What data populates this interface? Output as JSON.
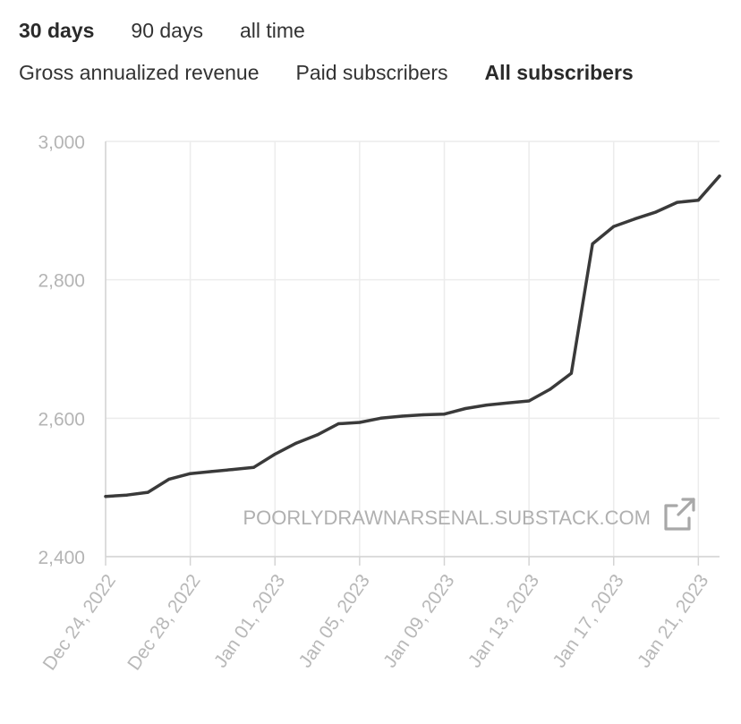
{
  "range_tabs": [
    {
      "label": "30 days",
      "active": true
    },
    {
      "label": "90 days",
      "active": false
    },
    {
      "label": "all time",
      "active": false
    }
  ],
  "metric_tabs": [
    {
      "label": "Gross annualized revenue",
      "active": false
    },
    {
      "label": "Paid subscribers",
      "active": false
    },
    {
      "label": "All subscribers",
      "active": true
    }
  ],
  "watermark": {
    "text": "POORLYDRAWNARSENAL.SUBSTACK.COM",
    "icon": "external-link-icon"
  },
  "colors": {
    "line": "#3a3a3a",
    "grid": "#ececec",
    "tick_text": "#b4b4b4"
  },
  "chart_data": {
    "type": "line",
    "title": "",
    "xlabel": "",
    "ylabel": "",
    "ylim": [
      2400,
      3000
    ],
    "yticks": [
      2400,
      2600,
      2800,
      3000
    ],
    "ytick_labels": [
      "2,400",
      "2,600",
      "2,800",
      "3,000"
    ],
    "xlim": [
      "2022-12-24",
      "2023-01-22"
    ],
    "xtick_labels": [
      "Dec 24, 2022",
      "Dec 28, 2022",
      "Jan 01, 2023",
      "Jan 05, 2023",
      "Jan 09, 2023",
      "Jan 13, 2023",
      "Jan 17, 2023",
      "Jan 21, 2023"
    ],
    "xtick_dates": [
      "2022-12-24",
      "2022-12-28",
      "2023-01-01",
      "2023-01-05",
      "2023-01-09",
      "2023-01-13",
      "2023-01-17",
      "2023-01-21"
    ],
    "grid": true,
    "series": [
      {
        "x": [
          "2022-12-24",
          "2022-12-25",
          "2022-12-26",
          "2022-12-27",
          "2022-12-28",
          "2022-12-29",
          "2022-12-30",
          "2022-12-31",
          "2023-01-01",
          "2023-01-02",
          "2023-01-03",
          "2023-01-04",
          "2023-01-05",
          "2023-01-06",
          "2023-01-07",
          "2023-01-08",
          "2023-01-09",
          "2023-01-10",
          "2023-01-11",
          "2023-01-12",
          "2023-01-13",
          "2023-01-14",
          "2023-01-15",
          "2023-01-16",
          "2023-01-17",
          "2023-01-18",
          "2023-01-19",
          "2023-01-20",
          "2023-01-21",
          "2023-01-22"
        ],
        "y": [
          2487,
          2489,
          2493,
          2512,
          2520,
          2523,
          2526,
          2529,
          2548,
          2564,
          2576,
          2592,
          2594,
          2600,
          2603,
          2605,
          2606,
          2614,
          2619,
          2622,
          2625,
          2642,
          2665,
          2852,
          2877,
          2888,
          2898,
          2912,
          2915,
          2950
        ]
      }
    ]
  }
}
